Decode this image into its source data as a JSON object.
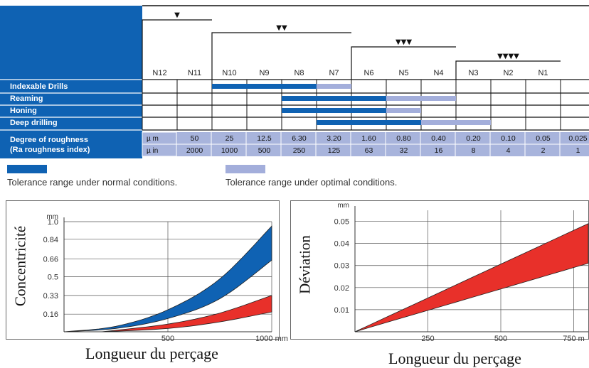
{
  "roughness_chart": {
    "grades": [
      "N12",
      "N11",
      "N10",
      "N9",
      "N8",
      "N7",
      "N6",
      "N5",
      "N4",
      "N3",
      "N2",
      "N1"
    ],
    "finish_symbols": [
      "▼",
      "▼▼",
      "▼▼▼",
      "▼▼▼▼"
    ],
    "processes": [
      {
        "label": "Indexable Drills",
        "normal": [
          "N10",
          "N8"
        ],
        "optimal": [
          "N7",
          "N7"
        ]
      },
      {
        "label": "Reaming",
        "normal": [
          "N8",
          "N6"
        ],
        "optimal": [
          "N5",
          "N4"
        ]
      },
      {
        "label": "Honing",
        "normal": [
          "N8",
          "N6"
        ],
        "optimal": [
          "N5",
          "N5"
        ]
      },
      {
        "label": "Deep drilling",
        "normal": [
          "N7",
          "N5"
        ],
        "optimal": [
          "N4",
          "N3"
        ]
      }
    ],
    "roughness_label_line1": "Degree of roughness",
    "roughness_label_line2": "(Ra roughness index)",
    "unit_um": "µ m",
    "unit_uin": "µ in",
    "values_um": [
      "50",
      "25",
      "12.5",
      "6.30",
      "3.20",
      "1.60",
      "0.80",
      "0.40",
      "0.20",
      "0.10",
      "0.05",
      "0.025"
    ],
    "values_uin": [
      "2000",
      "1000",
      "500",
      "250",
      "125",
      "63",
      "32",
      "16",
      "8",
      "4",
      "2",
      "1"
    ],
    "colors": {
      "normal": "#0f62b3",
      "optimal": "#a3aedb",
      "header": "#0f62b3",
      "value_row": "#a8b4dc"
    }
  },
  "legend": {
    "normal_text": "Tolerance range under normal conditions.",
    "optimal_text": "Tolerance range under optimal conditions.",
    "normal_color": "#0f62b3",
    "optimal_color": "#a3aedb"
  },
  "chart_data": [
    {
      "type": "area",
      "ylabel": "Concentricité",
      "yunit": "mm",
      "xlabel": "Longueur du perçage",
      "xticks": [
        "500",
        "1000 mm"
      ],
      "xlim": [
        0,
        1000
      ],
      "yticks": [
        "1.0",
        "0.84",
        "0.66",
        "0.5",
        "0.33",
        "0.16"
      ],
      "ytick_values": [
        1.0,
        0.84,
        0.66,
        0.5,
        0.33,
        0.16
      ],
      "ylim": [
        0,
        1.0
      ],
      "grid": true,
      "series": [
        {
          "color": "#0f62b3",
          "upper": [
            [
              0,
              0
            ],
            [
              250,
              0.05
            ],
            [
              500,
              0.2
            ],
            [
              750,
              0.48
            ],
            [
              1000,
              0.96
            ]
          ],
          "lower": [
            [
              0,
              0
            ],
            [
              250,
              0.03
            ],
            [
              500,
              0.12
            ],
            [
              750,
              0.3
            ],
            [
              1000,
              0.65
            ]
          ]
        },
        {
          "color": "#e8302a",
          "upper": [
            [
              180,
              0
            ],
            [
              500,
              0.07
            ],
            [
              750,
              0.17
            ],
            [
              1000,
              0.33
            ]
          ],
          "lower": [
            [
              180,
              0
            ],
            [
              500,
              0.03
            ],
            [
              750,
              0.09
            ],
            [
              1000,
              0.18
            ]
          ]
        }
      ]
    },
    {
      "type": "area",
      "ylabel": "Déviation",
      "yunit": "mm",
      "xlabel": "Longueur du perçage",
      "xticks": [
        "250",
        "500",
        "750 m"
      ],
      "xlim": [
        0,
        800
      ],
      "yticks": [
        "0.05",
        "0.04",
        "0.03",
        "0.02",
        "0.01"
      ],
      "ytick_values": [
        0.05,
        0.04,
        0.03,
        0.02,
        0.01
      ],
      "ylim": [
        0,
        0.055
      ],
      "grid": true,
      "series": [
        {
          "color": "#e8302a",
          "upper": [
            [
              0,
              0
            ],
            [
              800,
              0.049
            ]
          ],
          "lower": [
            [
              0,
              0
            ],
            [
              800,
              0.031
            ]
          ]
        }
      ]
    }
  ]
}
